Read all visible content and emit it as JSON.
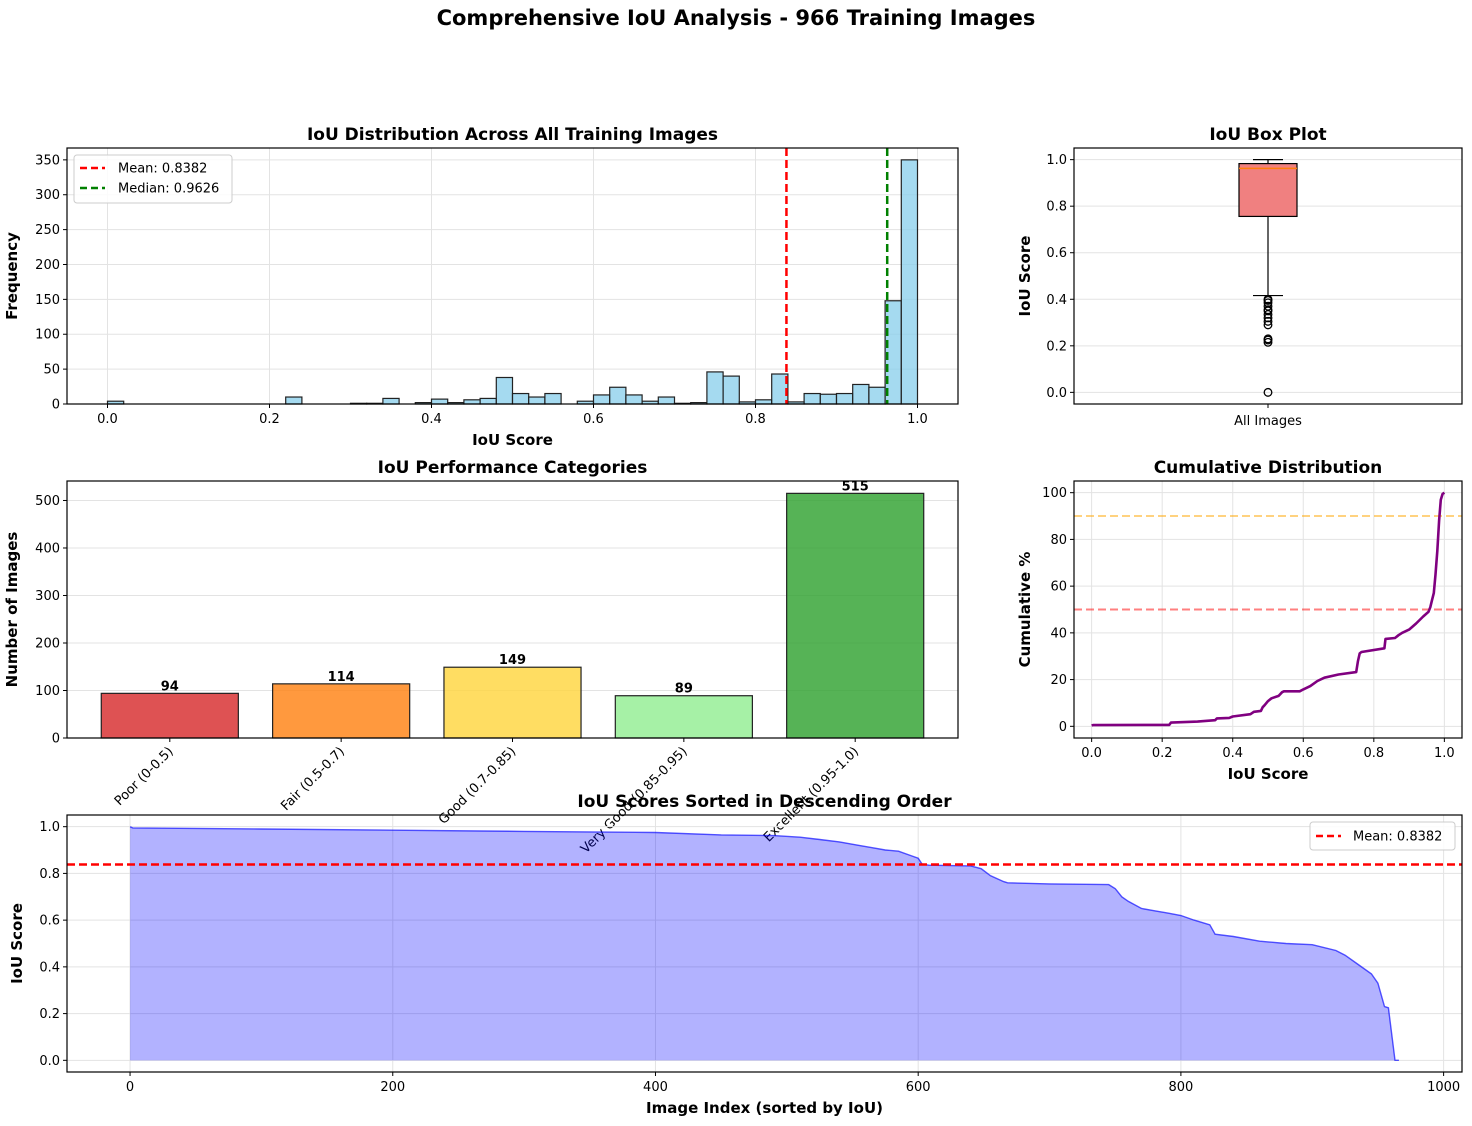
{
  "figure": {
    "suptitle": "Comprehensive IoU Analysis - 966 Training Images"
  },
  "chart_data": [
    {
      "id": "histogram",
      "type": "bar",
      "subtype": "histogram",
      "title": "IoU Distribution Across All Training Images",
      "xlabel": "IoU Score",
      "ylabel": "Frequency",
      "xlim": [
        -0.05,
        1.05
      ],
      "ylim": [
        0,
        367
      ],
      "xticks": [
        0.0,
        0.2,
        0.4,
        0.6,
        0.8,
        1.0
      ],
      "xtick_labels": [
        "0.0",
        "0.2",
        "0.4",
        "0.6",
        "0.8",
        "1.0"
      ],
      "yticks": [
        0,
        50,
        100,
        150,
        200,
        250,
        300,
        350
      ],
      "ytick_labels": [
        "0",
        "50",
        "100",
        "150",
        "200",
        "250",
        "300",
        "350"
      ],
      "grid": true,
      "bin_start": 0.0,
      "bin_width": 0.02,
      "counts": [
        4,
        0,
        0,
        0,
        0,
        0,
        0,
        0,
        0,
        0,
        0,
        10,
        0,
        0,
        0,
        1,
        1,
        8,
        0,
        2,
        7,
        2,
        6,
        8,
        38,
        15,
        10,
        15,
        0,
        4,
        13,
        24,
        13,
        4,
        10,
        1,
        2,
        46,
        40,
        3,
        6,
        43,
        3,
        15,
        14,
        15,
        28,
        24,
        148,
        350
      ],
      "bar_color": "#87CEEB",
      "edge_color": "#000000",
      "reference_lines": [
        {
          "label": "Mean: 0.8382",
          "value": 0.8382,
          "color": "#ff0000",
          "style": "dashed"
        },
        {
          "label": "Median: 0.9626",
          "value": 0.9626,
          "color": "#008000",
          "style": "dashed"
        }
      ],
      "legend": "top-left"
    },
    {
      "id": "boxplot",
      "type": "box",
      "title": "IoU Box Plot",
      "xlabel": "",
      "ylabel": "IoU Score",
      "ylim": [
        -0.05,
        1.05
      ],
      "yticks": [
        0.0,
        0.2,
        0.4,
        0.6,
        0.8,
        1.0
      ],
      "ytick_labels": [
        "0.0",
        "0.2",
        "0.4",
        "0.6",
        "0.8",
        "1.0"
      ],
      "category": "All Images",
      "grid": true,
      "stats": {
        "whisker_low": 0.416,
        "q1": 0.756,
        "median": 0.9626,
        "q3": 0.983,
        "whisker_high": 1.0
      },
      "outliers": [
        0.4,
        0.395,
        0.385,
        0.37,
        0.355,
        0.35,
        0.335,
        0.32,
        0.305,
        0.29,
        0.23,
        0.225,
        0.215,
        0.0
      ],
      "box_color": "#F08080",
      "median_color": "#FF7F0E"
    },
    {
      "id": "categories",
      "type": "bar",
      "title": "IoU Performance Categories",
      "xlabel": "",
      "ylabel": "Number of Images",
      "ylim": [
        0,
        541
      ],
      "yticks": [
        0,
        100,
        200,
        300,
        400,
        500
      ],
      "ytick_labels": [
        "0",
        "100",
        "200",
        "300",
        "400",
        "500"
      ],
      "grid": true,
      "categories": [
        "Poor (0-0.5)",
        "Fair (0.5-0.7)",
        "Good (0.7-0.85)",
        "Very Good (0.85-0.95)",
        "Excellent (0.95-1.0)"
      ],
      "values": [
        94,
        114,
        149,
        89,
        515
      ],
      "data_labels": [
        "94",
        "114",
        "149",
        "89",
        "515"
      ],
      "colors": [
        "#D62728",
        "#FF7F0E",
        "#FFD43B",
        "#90EE90",
        "#2CA02C"
      ]
    },
    {
      "id": "cumulative",
      "type": "line",
      "title": "Cumulative Distribution",
      "xlabel": "IoU Score",
      "ylabel": "Cumulative %",
      "xlim": [
        -0.05,
        1.05
      ],
      "ylim": [
        -5,
        105
      ],
      "xticks": [
        0.0,
        0.2,
        0.4,
        0.6,
        0.8,
        1.0
      ],
      "xtick_labels": [
        "0.0",
        "0.2",
        "0.4",
        "0.6",
        "0.8",
        "1.0"
      ],
      "yticks": [
        0,
        20,
        40,
        60,
        80,
        100
      ],
      "ytick_labels": [
        "0",
        "20",
        "40",
        "60",
        "80",
        "100"
      ],
      "grid": true,
      "series": [
        {
          "name": "Cumulative",
          "color": "#800080",
          "x": [
            0.0,
            0.004,
            0.22,
            0.225,
            0.3,
            0.35,
            0.355,
            0.39,
            0.4,
            0.45,
            0.46,
            0.48,
            0.485,
            0.49,
            0.5,
            0.51,
            0.53,
            0.54,
            0.545,
            0.59,
            0.6,
            0.62,
            0.64,
            0.66,
            0.7,
            0.75,
            0.755,
            0.76,
            0.765,
            0.83,
            0.833,
            0.86,
            0.87,
            0.88,
            0.9,
            0.92,
            0.94,
            0.955,
            0.96,
            0.965,
            0.97,
            0.975,
            0.98,
            0.985,
            0.99,
            0.995,
            1.0
          ],
          "y": [
            0.4,
            0.5,
            0.6,
            1.6,
            2.0,
            2.6,
            3.4,
            3.6,
            4.2,
            5.2,
            6.2,
            6.6,
            8.2,
            9.0,
            10.8,
            12.0,
            13.0,
            14.6,
            15.0,
            15.0,
            15.8,
            17.2,
            19.4,
            20.8,
            22.2,
            23.2,
            27.8,
            31.2,
            31.8,
            33.4,
            37.4,
            37.8,
            39.0,
            40.0,
            41.4,
            44.0,
            47.0,
            49.0,
            51.0,
            54.0,
            57.0,
            65.0,
            75.0,
            88.0,
            97.0,
            99.5,
            100.0
          ]
        }
      ],
      "reference_lines": [
        {
          "value": 90,
          "color": "#FFA500",
          "style": "dashed"
        },
        {
          "value": 50,
          "color": "#FF0000",
          "style": "dashed"
        }
      ]
    },
    {
      "id": "sorted",
      "type": "area",
      "title": "IoU Scores Sorted in Descending Order",
      "xlabel": "Image Index (sorted by IoU)",
      "ylabel": "IoU Score",
      "xlim": [
        -48,
        1014
      ],
      "ylim": [
        -0.05,
        1.05
      ],
      "xticks": [
        0,
        200,
        400,
        600,
        800,
        1000
      ],
      "xtick_labels": [
        "0",
        "200",
        "400",
        "600",
        "800",
        "1000"
      ],
      "yticks": [
        0.0,
        0.2,
        0.4,
        0.6,
        0.8,
        1.0
      ],
      "ytick_labels": [
        "0.0",
        "0.2",
        "0.4",
        "0.6",
        "0.8",
        "1.0"
      ],
      "grid": true,
      "series": [
        {
          "name": "IoU",
          "color": "#0000FF",
          "x": [
            0,
            2,
            100,
            200,
            300,
            400,
            450,
            490,
            510,
            525,
            540,
            555,
            565,
            575,
            585,
            595,
            600,
            603,
            608,
            640,
            648,
            655,
            665,
            668,
            700,
            745,
            750,
            755,
            760,
            770,
            780,
            790,
            800,
            810,
            822,
            826,
            840,
            860,
            880,
            900,
            918,
            925,
            935,
            945,
            950,
            955,
            958,
            963,
            966
          ],
          "y": [
            1.0,
            0.995,
            0.99,
            0.985,
            0.98,
            0.975,
            0.965,
            0.962,
            0.955,
            0.945,
            0.935,
            0.92,
            0.91,
            0.9,
            0.895,
            0.875,
            0.865,
            0.84,
            0.835,
            0.832,
            0.82,
            0.79,
            0.765,
            0.76,
            0.755,
            0.752,
            0.735,
            0.7,
            0.68,
            0.65,
            0.64,
            0.63,
            0.62,
            0.6,
            0.58,
            0.54,
            0.53,
            0.51,
            0.5,
            0.495,
            0.47,
            0.45,
            0.41,
            0.37,
            0.33,
            0.23,
            0.225,
            0.0,
            0.0
          ]
        }
      ],
      "reference_lines": [
        {
          "label": "Mean: 0.8382",
          "value": 0.8382,
          "color": "#ff0000",
          "style": "dashed"
        }
      ],
      "legend": "top-right"
    }
  ]
}
